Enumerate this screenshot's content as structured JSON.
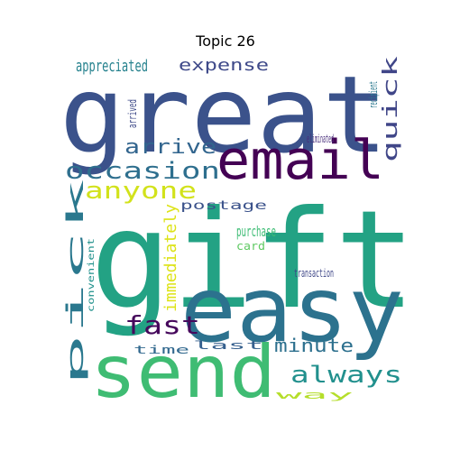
{
  "title": "Topic 26",
  "words": [
    {
      "text": "gift",
      "color": "#23a284"
    },
    {
      "text": "great",
      "color": "#3b528b"
    },
    {
      "text": "easy",
      "color": "#2c728e"
    },
    {
      "text": "send",
      "color": "#3fbc73"
    },
    {
      "text": "email",
      "color": "#440154"
    },
    {
      "text": "occasion",
      "color": "#2e6f8e"
    },
    {
      "text": "anyone",
      "color": "#d2e21b"
    },
    {
      "text": "arrive",
      "color": "#32658e"
    },
    {
      "text": "appreciated",
      "color": "#26828e"
    },
    {
      "text": "expense",
      "color": "#3e4989"
    },
    {
      "text": "fast",
      "color": "#46085c"
    },
    {
      "text": "always",
      "color": "#21908d"
    },
    {
      "text": "minute",
      "color": "#2d708e"
    },
    {
      "text": "purchase",
      "color": "#3dbc74"
    },
    {
      "text": "postage",
      "color": "#3b528b"
    },
    {
      "text": "eliminated",
      "color": "#472c7a"
    },
    {
      "text": "card",
      "color": "#5ec962"
    },
    {
      "text": "transaction",
      "color": "#3f4788"
    },
    {
      "text": "time",
      "color": "#31688e"
    },
    {
      "text": "last",
      "color": "#355f8d"
    },
    {
      "text": "way",
      "color": "#b5de2b"
    },
    {
      "text": "pick",
      "color": "#2a788e"
    },
    {
      "text": "quick",
      "color": "#404688"
    },
    {
      "text": "immediately",
      "color": "#dde318"
    },
    {
      "text": "arrived",
      "color": "#3e4a89"
    },
    {
      "text": "recipient",
      "color": "#2a788e"
    },
    {
      "text": "convenient",
      "color": "#21918c"
    }
  ]
}
